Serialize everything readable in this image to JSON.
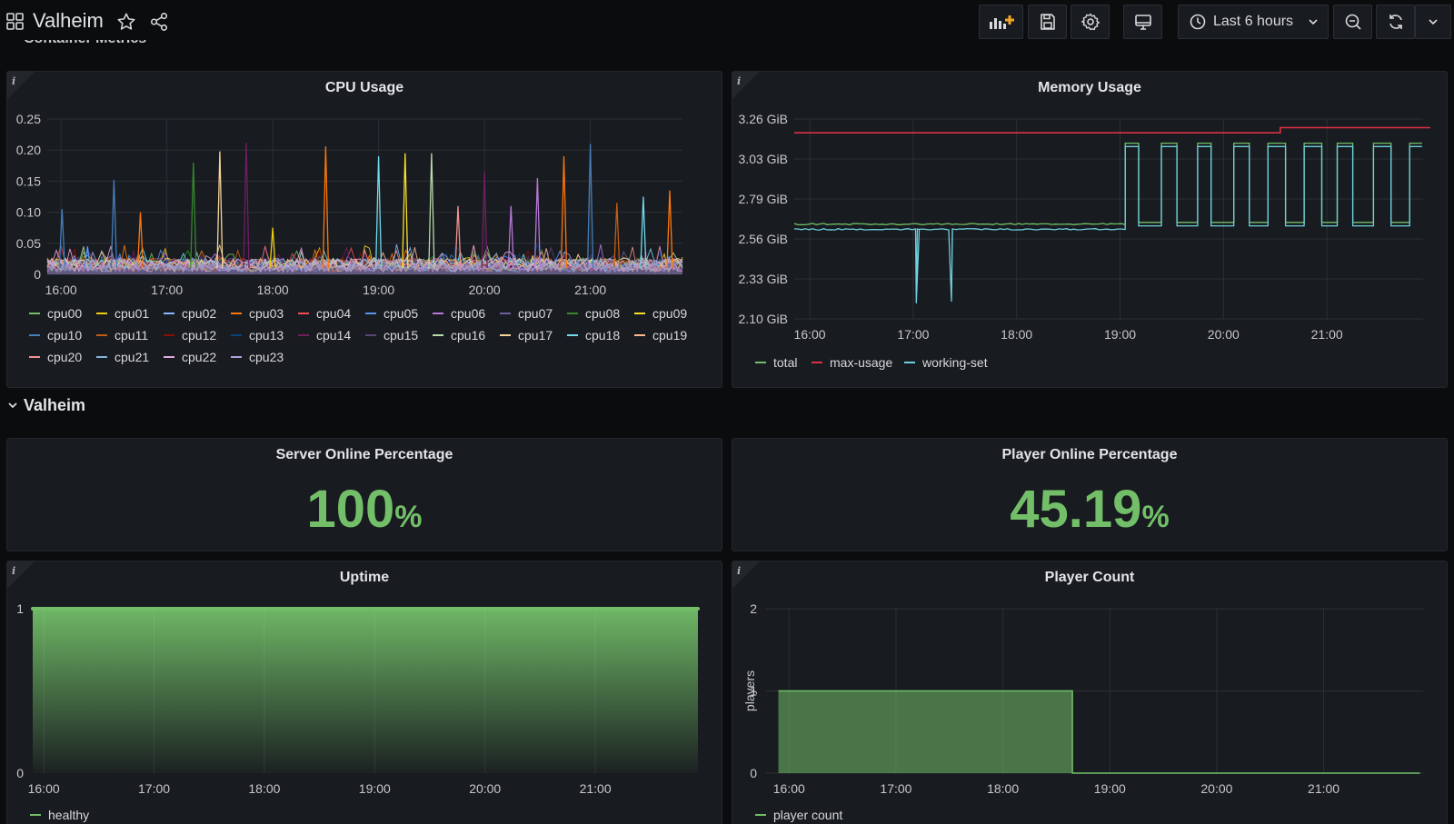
{
  "header": {
    "title": "Valheim",
    "cut_section_title": "Container Metrics",
    "time_range": "Last 6 hours"
  },
  "colors": {
    "green": "#73bf69",
    "red": "#e02f44",
    "cyan": "#6ed0e0",
    "panel_bg": "#181b1f",
    "grid": "#2c2f35"
  },
  "cpu_panel": {
    "title": "CPU Usage",
    "chart_data": {
      "type": "line",
      "x_ticks": [
        "16:00",
        "17:00",
        "18:00",
        "19:00",
        "20:00",
        "21:00"
      ],
      "y_ticks": [
        "0.25",
        "0.20",
        "0.15",
        "0.10",
        "0.05",
        "0"
      ],
      "ylim": [
        0,
        0.25
      ],
      "series_names": [
        "cpu00",
        "cpu01",
        "cpu02",
        "cpu03",
        "cpu04",
        "cpu05",
        "cpu06",
        "cpu07",
        "cpu08",
        "cpu09",
        "cpu10",
        "cpu11",
        "cpu12",
        "cpu13",
        "cpu14",
        "cpu15",
        "cpu16",
        "cpu17",
        "cpu18",
        "cpu19",
        "cpu20",
        "cpu21",
        "cpu22",
        "cpu23"
      ],
      "series_colors": [
        "#73bf69",
        "#f2cc0c",
        "#8ab8ff",
        "#ff780a",
        "#f2495c",
        "#5794f2",
        "#b877d9",
        "#705da0",
        "#37872d",
        "#fade2a",
        "#447ebc",
        "#c15c17",
        "#890f02",
        "#0a437c",
        "#6d1f62",
        "#584477",
        "#b7dbab",
        "#f4d598",
        "#70dbed",
        "#f9ba8f",
        "#f29191",
        "#82b5d8",
        "#e5a8e2",
        "#aea2e0"
      ],
      "spikes": [
        {
          "t": 16.01,
          "v": 0.105,
          "s": 10
        },
        {
          "t": 16.25,
          "v": 0.045,
          "s": 5
        },
        {
          "t": 16.5,
          "v": 0.152,
          "s": 10
        },
        {
          "t": 16.75,
          "v": 0.1,
          "s": 3
        },
        {
          "t": 17.25,
          "v": 0.18,
          "s": 8
        },
        {
          "t": 17.5,
          "v": 0.198,
          "s": 17
        },
        {
          "t": 17.75,
          "v": 0.212,
          "s": 14
        },
        {
          "t": 18.0,
          "v": 0.075,
          "s": 1
        },
        {
          "t": 18.5,
          "v": 0.206,
          "s": 3
        },
        {
          "t": 19.0,
          "v": 0.19,
          "s": 18
        },
        {
          "t": 19.25,
          "v": 0.195,
          "s": 9
        },
        {
          "t": 19.5,
          "v": 0.195,
          "s": 16
        },
        {
          "t": 19.75,
          "v": 0.11,
          "s": 20
        },
        {
          "t": 20.0,
          "v": 0.165,
          "s": 14
        },
        {
          "t": 20.25,
          "v": 0.11,
          "s": 6
        },
        {
          "t": 20.5,
          "v": 0.155,
          "s": 6
        },
        {
          "t": 20.75,
          "v": 0.19,
          "s": 3
        },
        {
          "t": 21.0,
          "v": 0.21,
          "s": 10
        },
        {
          "t": 21.25,
          "v": 0.115,
          "s": 11
        },
        {
          "t": 21.5,
          "v": 0.125,
          "s": 18
        },
        {
          "t": 21.75,
          "v": 0.135,
          "s": 3
        }
      ]
    }
  },
  "memory_panel": {
    "title": "Memory Usage",
    "chart_data": {
      "type": "line",
      "x_ticks": [
        "16:00",
        "17:00",
        "18:00",
        "19:00",
        "20:00",
        "21:00"
      ],
      "y_ticks": [
        "3.26 GiB",
        "3.03 GiB",
        "2.79 GiB",
        "2.56 GiB",
        "2.33 GiB",
        "2.10 GiB"
      ],
      "ylim_gib": [
        2.1,
        3.26
      ],
      "series": [
        {
          "name": "total",
          "color": "#73bf69"
        },
        {
          "name": "max-usage",
          "color": "#e02f44"
        },
        {
          "name": "working-set",
          "color": "#6ed0e0"
        }
      ],
      "max_usage_points": [
        [
          15.85,
          3.18
        ],
        [
          20.55,
          3.18
        ],
        [
          20.55,
          3.21
        ],
        [
          22.0,
          3.21
        ]
      ],
      "baseline_total": 2.65,
      "baseline_working": 2.62,
      "dips": [
        {
          "t": 17.03,
          "v": 2.19
        },
        {
          "t": 17.37,
          "v": 2.2
        }
      ],
      "high_value": 3.1,
      "low_value": 2.64,
      "step_start": 19.05,
      "steps": [
        [
          19.05,
          19.18,
          "high"
        ],
        [
          19.18,
          19.4,
          "low"
        ],
        [
          19.4,
          19.55,
          "high"
        ],
        [
          19.55,
          19.75,
          "low"
        ],
        [
          19.75,
          19.88,
          "high"
        ],
        [
          19.88,
          20.1,
          "low"
        ],
        [
          20.1,
          20.25,
          "high"
        ],
        [
          20.25,
          20.43,
          "low"
        ],
        [
          20.43,
          20.6,
          "high"
        ],
        [
          20.6,
          20.78,
          "low"
        ],
        [
          20.78,
          20.95,
          "high"
        ],
        [
          20.95,
          21.1,
          "low"
        ],
        [
          21.1,
          21.25,
          "high"
        ],
        [
          21.25,
          21.45,
          "low"
        ],
        [
          21.45,
          21.62,
          "high"
        ],
        [
          21.62,
          21.8,
          "low"
        ],
        [
          21.8,
          21.92,
          "high"
        ]
      ]
    }
  },
  "section": {
    "title": "Valheim"
  },
  "server_online": {
    "title": "Server Online Percentage",
    "value": "100",
    "unit": "%"
  },
  "player_online": {
    "title": "Player Online Percentage",
    "value": "45.19",
    "unit": "%"
  },
  "uptime_panel": {
    "title": "Uptime",
    "chart_data": {
      "type": "area",
      "x_ticks": [
        "16:00",
        "17:00",
        "18:00",
        "19:00",
        "20:00",
        "21:00"
      ],
      "y_ticks": [
        "1",
        "0"
      ],
      "series": [
        {
          "name": "healthy",
          "value": 1
        }
      ]
    }
  },
  "player_count_panel": {
    "title": "Player Count",
    "ylabel": "players",
    "chart_data": {
      "type": "area",
      "x_ticks": [
        "16:00",
        "17:00",
        "18:00",
        "19:00",
        "20:00",
        "21:00"
      ],
      "y_ticks": [
        "2",
        "1",
        "0"
      ],
      "series": [
        {
          "name": "player count",
          "points": [
            [
              15.9,
              1
            ],
            [
              18.65,
              1
            ],
            [
              18.65,
              0
            ],
            [
              21.9,
              0
            ]
          ]
        }
      ]
    }
  }
}
